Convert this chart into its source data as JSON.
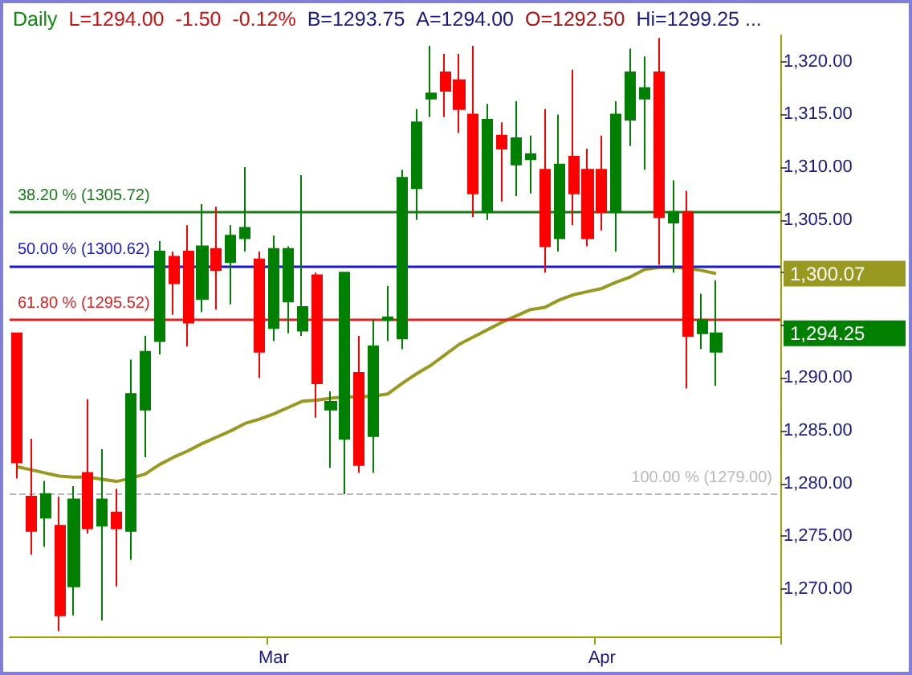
{
  "chart_data": {
    "type": "candlestick",
    "title": "Daily",
    "annotations": [
      "L=1294.00",
      "-1.50",
      "-0.12%",
      "B=1293.75",
      "A=1294.00",
      "O=1292.50",
      "Hi=1299.25 ...",
      "1,300.07",
      "1,294.25"
    ],
    "categories": [
      null,
      null,
      null,
      null,
      null,
      null,
      null,
      null,
      null,
      null,
      null,
      null,
      null,
      null,
      null,
      null,
      null,
      null,
      "Mar",
      null,
      null,
      null,
      null,
      null,
      null,
      null,
      null,
      null,
      null,
      null,
      null,
      null,
      null,
      null,
      null,
      null,
      null,
      null,
      null,
      null,
      null,
      "Apr",
      null,
      null,
      null,
      null,
      null,
      null,
      null,
      null,
      null,
      null,
      null,
      null
    ],
    "series": [
      {
        "ohlc": [
          [
            1294.25,
            1294.25,
            1280.5,
            1282
          ],
          [
            1278.75,
            1284.25,
            1273.25,
            1275.5
          ],
          [
            1276.75,
            1280.25,
            1274,
            1279
          ],
          [
            1276,
            1278.75,
            1266,
            1267.5
          ],
          [
            1270.25,
            1279.75,
            1267.5,
            1278.5
          ],
          [
            1281,
            1288,
            1275.25,
            1275.75
          ],
          [
            1276,
            1283.25,
            1267,
            1278.5
          ],
          [
            1277.25,
            1279.5,
            1270.25,
            1275.75
          ],
          [
            1275.5,
            1291.75,
            1272.75,
            1288.5
          ],
          [
            1287,
            1294,
            1282.5,
            1292.5
          ],
          [
            1293.5,
            1303,
            1292.25,
            1302
          ],
          [
            1301.5,
            1302,
            1296,
            1299
          ],
          [
            1302,
            1304.5,
            1293,
            1295.25
          ],
          [
            1297.5,
            1306.5,
            1296.25,
            1302.5
          ],
          [
            1302.25,
            1306.25,
            1296.5,
            1300.25
          ],
          [
            1301,
            1304.5,
            1297,
            1303.5
          ],
          [
            1303.25,
            1310,
            1302,
            1304.25
          ],
          [
            1301.25,
            1302,
            1290,
            1292.5
          ],
          [
            1294.75,
            1303.5,
            1293.5,
            1302.25
          ],
          [
            1297.25,
            1302.5,
            1294.25,
            1302.25
          ],
          [
            1294.5,
            1309.25,
            1294,
            1296.75
          ],
          [
            1299.75,
            1300,
            1286.25,
            1289.5
          ],
          [
            1287,
            1288.75,
            1281.5,
            1287.75
          ],
          [
            1284.25,
            1300,
            1279,
            1300
          ],
          [
            1290.5,
            1294,
            1281,
            1281.75
          ],
          [
            1284.5,
            1295.5,
            1281,
            1293
          ],
          [
            1295.5,
            1298.75,
            1293.5,
            1295.75
          ],
          [
            1293.75,
            1309.75,
            1292.75,
            1309
          ],
          [
            1308,
            1315.5,
            1305,
            1314.25
          ],
          [
            1316.5,
            1321.5,
            1314.75,
            1317
          ],
          [
            1319,
            1320.75,
            1314.75,
            1317.25
          ],
          [
            1318.25,
            1320.75,
            1313.25,
            1315.5
          ],
          [
            1315,
            1321.5,
            1305.25,
            1307.5
          ],
          [
            1305.75,
            1316,
            1305,
            1314.5
          ],
          [
            1313,
            1314.25,
            1306.75,
            1311.75
          ],
          [
            1310.25,
            1316.25,
            1307.25,
            1312.75
          ],
          [
            1310.75,
            1313,
            1307.5,
            1311.25
          ],
          [
            1309.75,
            1315.5,
            1300,
            1302.5
          ],
          [
            1303.25,
            1315,
            1302,
            1310.25
          ],
          [
            1311,
            1319.25,
            1304.5,
            1307.5
          ],
          [
            1309.75,
            1311.75,
            1302.5,
            1303.25
          ],
          [
            1309.75,
            1313,
            1304,
            1305.75
          ],
          [
            1305.75,
            1316.25,
            1302,
            1315
          ],
          [
            1314.5,
            1321.25,
            1312,
            1319
          ],
          [
            1316.5,
            1320.5,
            1309.75,
            1317.5
          ],
          [
            1319,
            1322.25,
            1300.75,
            1305.25
          ],
          [
            1304.75,
            1308.75,
            1300,
            1305.75
          ],
          [
            1305.75,
            1307.75,
            1289,
            1294
          ],
          [
            1294.25,
            1298,
            1292.75,
            1295.5
          ],
          [
            1292.5,
            1299.25,
            1289.25,
            1294.25
          ],
          null,
          null,
          null,
          null
        ],
        "colors": [
          "#ff0000",
          "#ff0000",
          "#008000",
          "#ff0000",
          "#008000",
          "#ff0000",
          "#008000",
          "#ff0000",
          "#008000",
          "#008000",
          "#008000",
          "#ff0000",
          "#ff0000",
          "#008000",
          "#ff0000",
          "#008000",
          "#008000",
          "#ff0000",
          "#008000",
          "#008000",
          "#008000",
          "#ff0000",
          "#008000",
          "#008000",
          "#ff0000",
          "#008000",
          "#008000",
          "#008000",
          "#008000",
          "#008000",
          "#ff0000",
          "#ff0000",
          "#ff0000",
          "#008000",
          "#ff0000",
          "#008000",
          "#008000",
          "#ff0000",
          "#008000",
          "#ff0000",
          "#ff0000",
          "#ff0000",
          "#008000",
          "#008000",
          "#008000",
          "#ff0000",
          "#008000",
          "#ff0000",
          "#008000",
          "#008000",
          null,
          null,
          null,
          null
        ]
      },
      {
        "type": "line",
        "color": "#999922",
        "values": [
          1281.6,
          1281.3,
          1281,
          1280.7,
          1280.6,
          1280.6,
          1280.4,
          1280.2,
          1280.5,
          1280.9,
          1281.8,
          1282.5,
          1283.1,
          1283.8,
          1284.4,
          1285,
          1285.7,
          1286.1,
          1286.6,
          1287.2,
          1287.8,
          1287.9,
          1288.1,
          1288.2,
          1288.2,
          1288.3,
          1288.5,
          1289.5,
          1290.4,
          1291.2,
          1292.2,
          1293.2,
          1293.9,
          1294.6,
          1295.3,
          1295.9,
          1296.5,
          1296.7,
          1297.4,
          1297.9,
          1298.2,
          1298.5,
          1299.1,
          1299.6,
          1300.3,
          1300.5,
          1300.5,
          1300.4,
          1300.2,
          1299.9,
          null,
          null,
          null,
          null
        ]
      }
    ],
    "ylim": [
      1265.5,
      1322.5
    ],
    "yticks": [
      {
        "value": 1270,
        "label": "1,270.00"
      },
      {
        "value": 1275,
        "label": "1,275.00"
      },
      {
        "value": 1280,
        "label": "1,280.00"
      },
      {
        "value": 1285,
        "label": "1,285.00"
      },
      {
        "value": 1290,
        "label": "1,290.00"
      },
      {
        "value": 1295,
        "label": null
      },
      {
        "value": 1300,
        "label": null
      },
      {
        "value": 1305,
        "label": "1,305.00"
      },
      {
        "value": 1310,
        "label": "1,310.00"
      },
      {
        "value": 1315,
        "label": "1,315.00"
      },
      {
        "value": 1320,
        "label": "1,320.00"
      }
    ],
    "ref_lines": [
      {
        "axis": "y",
        "value": 1305.72,
        "label": "38.20 % (1305.72)",
        "color": "#1a7a1a"
      },
      {
        "axis": "y",
        "value": 1300.62,
        "label": "50.00 % (1300.62)",
        "color": "#1a1acc"
      },
      {
        "axis": "y",
        "value": 1295.52,
        "label": "61.80 % (1295.52)",
        "color": "#dd2222"
      },
      {
        "axis": "y",
        "value": 1279,
        "label": "100.00 % (1279.00)",
        "color": "#b8b8b8",
        "line_style": "dashed"
      }
    ],
    "marker": "none",
    "grid": false
  }
}
